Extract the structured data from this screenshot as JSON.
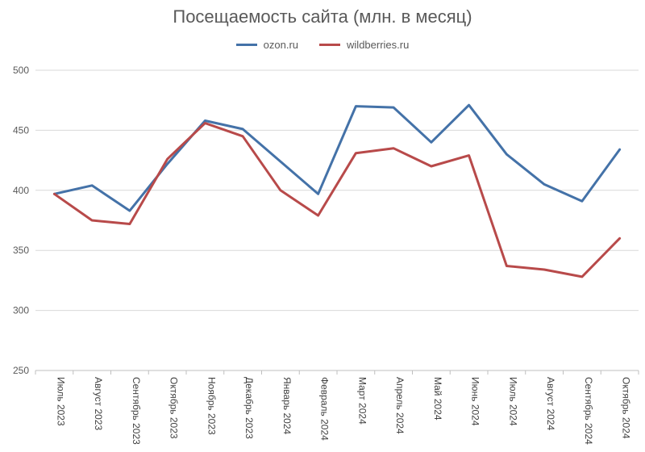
{
  "colors": {
    "ozon": "#4472A8",
    "wildberries": "#B84A4A",
    "grid": "#D9D9D9",
    "axis": "#BFBFBF"
  },
  "chart_data": {
    "type": "line",
    "title": "Посещаемость сайта (млн. в месяц)",
    "xlabel": "",
    "ylabel": "",
    "ylim": [
      250,
      500
    ],
    "yticks": [
      250,
      300,
      350,
      400,
      450,
      500
    ],
    "grid": true,
    "legend_position": "top",
    "categories": [
      "Июль 2023",
      "Август 2023",
      "Сентябрь 2023",
      "Октябрь 2023",
      "Ноябрь 2023",
      "Декабрь 2023",
      "Январь 2024",
      "Февраль 2024",
      "Март 2024",
      "Апрель 2024",
      "Май 2024",
      "Июнь 2024",
      "Июль 2024",
      "Август 2024",
      "Сентябрь 2024",
      "Октябрь 2024"
    ],
    "series": [
      {
        "name": "ozon.ru",
        "color": "#4472A8",
        "values": [
          397,
          404,
          383,
          422,
          458,
          451,
          424,
          397,
          470,
          469,
          440,
          471,
          430,
          405,
          391,
          434
        ]
      },
      {
        "name": "wildberries.ru",
        "color": "#B84A4A",
        "values": [
          397,
          375,
          372,
          426,
          456,
          445,
          400,
          379,
          431,
          435,
          420,
          429,
          337,
          334,
          328,
          360
        ]
      }
    ]
  }
}
